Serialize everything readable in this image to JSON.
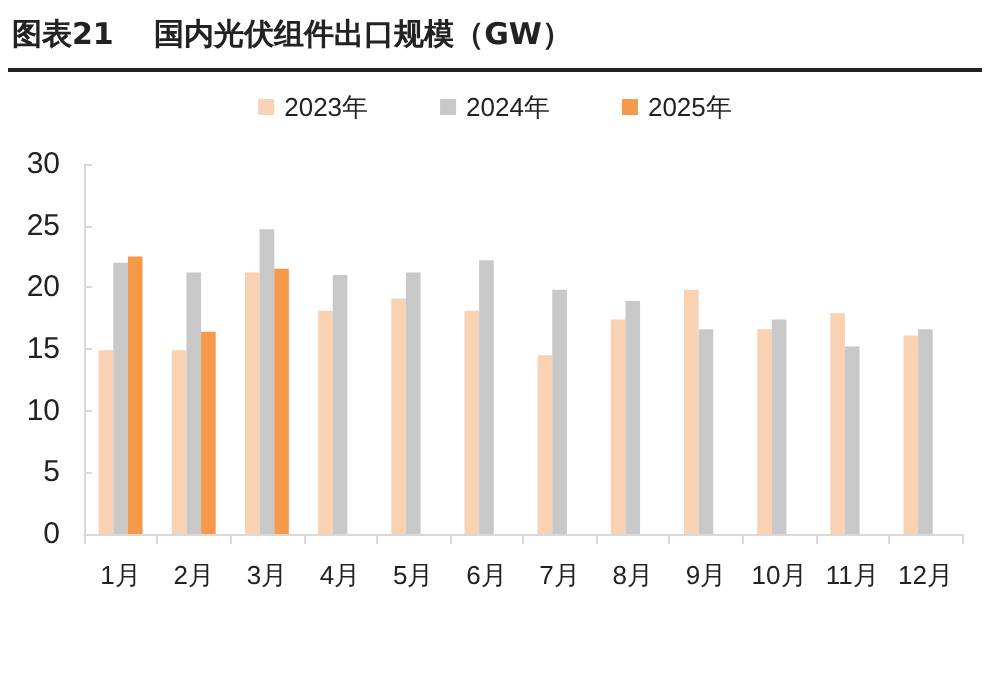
{
  "chart_data": {
    "type": "bar",
    "title": "图表21　 国内光伏组件出口规模（GW）",
    "categories": [
      "1月",
      "2月",
      "3月",
      "4月",
      "5月",
      "6月",
      "7月",
      "8月",
      "9月",
      "10月",
      "11月",
      "12月"
    ],
    "series": [
      {
        "name": "2023年",
        "color": "#f9d2b4",
        "values": [
          14.9,
          14.9,
          21.2,
          18.1,
          19.1,
          18.1,
          14.5,
          17.4,
          19.8,
          16.6,
          17.9,
          16.1
        ]
      },
      {
        "name": "2024年",
        "color": "#c8c8c8",
        "values": [
          22.0,
          21.2,
          24.7,
          21.0,
          21.2,
          22.2,
          19.8,
          18.9,
          16.6,
          17.4,
          15.2,
          16.6
        ]
      },
      {
        "name": "2025年",
        "color": "#f59a4a",
        "values": [
          22.5,
          16.4,
          21.5,
          null,
          null,
          null,
          null,
          null,
          null,
          null,
          null,
          null
        ]
      }
    ],
    "ylim": [
      0,
      30
    ],
    "yticks": [
      0,
      5,
      10,
      15,
      20,
      25,
      30
    ],
    "grid": false,
    "legend": "top"
  }
}
